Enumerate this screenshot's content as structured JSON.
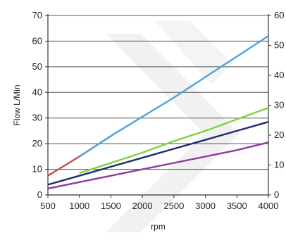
{
  "chart_data": {
    "type": "line",
    "title": "",
    "xlabel": "rpm",
    "ylabel": "Flow L/Min",
    "xlim": [
      500,
      4000
    ],
    "ylim": [
      0,
      70
    ],
    "y2lim": [
      0,
      60
    ],
    "x_ticks": [
      "500",
      "1000",
      "1500",
      "2000",
      "2500",
      "3000",
      "3500",
      "4000"
    ],
    "y_ticks": [
      "0",
      "10",
      "20",
      "30",
      "40",
      "50",
      "60",
      "70"
    ],
    "y2_ticks": [
      "0",
      "10",
      "20",
      "30",
      "40",
      "50",
      "60"
    ],
    "grid": true,
    "legend": "none",
    "series": [
      {
        "color": "#c0504d",
        "points": [
          [
            500,
            7.5
          ],
          [
            1000,
            15
          ],
          [
            1500,
            23
          ]
        ]
      },
      {
        "color": "#4aa3df",
        "points": [
          [
            1000,
            15
          ],
          [
            1500,
            23
          ],
          [
            2000,
            30.5
          ],
          [
            2500,
            38
          ],
          [
            3000,
            46
          ],
          [
            3500,
            54
          ],
          [
            4000,
            62
          ]
        ]
      },
      {
        "color": "#7ed33c",
        "points": [
          [
            1000,
            8.5
          ],
          [
            1500,
            12.5
          ],
          [
            2000,
            16.5
          ],
          [
            2500,
            21
          ],
          [
            3000,
            25
          ],
          [
            3500,
            29.5
          ],
          [
            4000,
            34
          ]
        ]
      },
      {
        "color": "#1f2a6b",
        "points": [
          [
            500,
            4
          ],
          [
            1000,
            7.5
          ],
          [
            1500,
            11
          ],
          [
            2000,
            14.5
          ],
          [
            2500,
            18
          ],
          [
            3000,
            21.5
          ],
          [
            3500,
            25
          ],
          [
            4000,
            28.5
          ]
        ]
      },
      {
        "color": "#8e3a9d",
        "points": [
          [
            500,
            2.5
          ],
          [
            1000,
            5
          ],
          [
            1500,
            7.5
          ],
          [
            2000,
            10
          ],
          [
            2500,
            12.5
          ],
          [
            3000,
            15
          ],
          [
            3500,
            17.5
          ],
          [
            4000,
            20.5
          ]
        ]
      }
    ]
  }
}
